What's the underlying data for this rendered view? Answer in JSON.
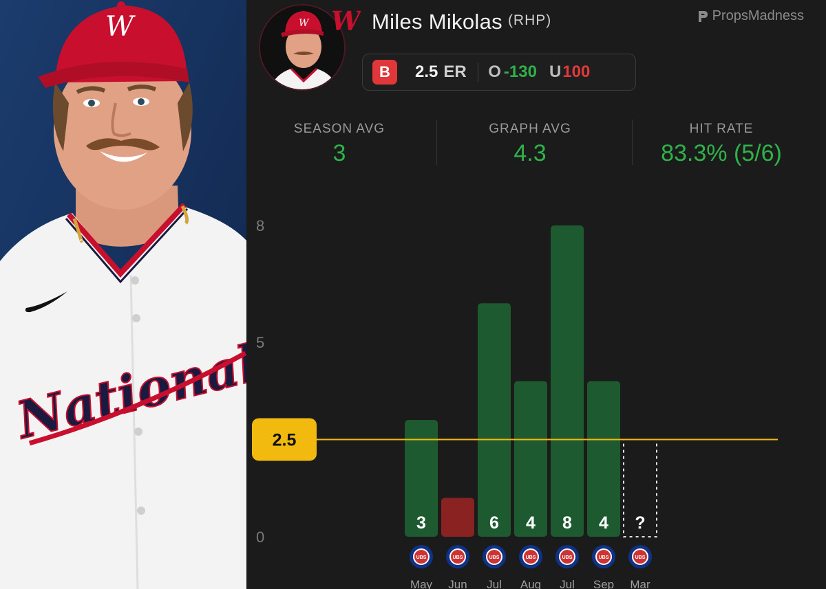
{
  "player": {
    "name": "Miles Mikolas",
    "position": "(RHP)",
    "team_logo_letter": "W",
    "jersey_text": "Nationals"
  },
  "brand": {
    "name": "PropsMadness",
    "icon": "propsmadness-logo-icon"
  },
  "prop": {
    "book_badge": "B",
    "line": "2.5",
    "unit": "ER",
    "over_label": "O",
    "over_odds": "-130",
    "under_label": "U",
    "under_odds": "100",
    "book_color": "#e0373a",
    "over_color": "#2fb24a",
    "under_color": "#e23a3a"
  },
  "stats": {
    "season_avg_label": "SEASON AVG",
    "season_avg": "3",
    "graph_avg_label": "GRAPH AVG",
    "graph_avg": "4.3",
    "hit_rate_label": "HIT RATE",
    "hit_rate": "83.3% (5/6)"
  },
  "chart_data": {
    "type": "bar",
    "title": "",
    "xlabel": "",
    "ylabel": "",
    "yticks": [
      0,
      5,
      8
    ],
    "ylim": [
      0,
      8
    ],
    "threshold": {
      "value": 2.5,
      "label": "2.5",
      "color": "#f2b90f"
    },
    "categories": [
      "May",
      "Jun",
      "Jul",
      "Aug",
      "Jul",
      "Sep",
      "Mar"
    ],
    "values": [
      3,
      1,
      6,
      4,
      8,
      4,
      null
    ],
    "value_labels": [
      "3",
      "",
      "6",
      "4",
      "8",
      "4",
      "?"
    ],
    "opponent_icon": "cubs-logo-icon",
    "hit_color": "#1e5a30",
    "miss_color": "#8a2222",
    "upcoming_label": "?"
  }
}
